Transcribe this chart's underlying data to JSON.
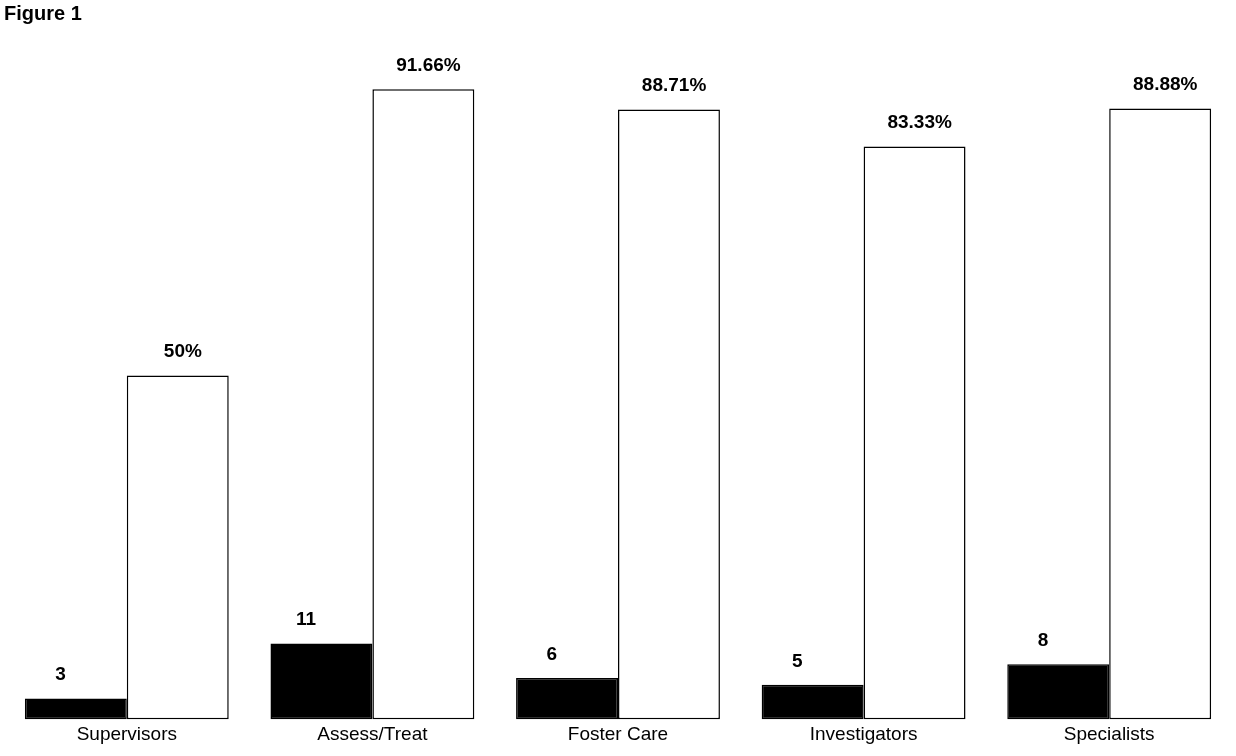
{
  "chart_data": {
    "type": "bar",
    "title": "Figure 1",
    "categories": [
      "Supervisors",
      "Assess/Treat",
      "Foster Care",
      "Investigators",
      "Specialists"
    ],
    "series": [
      {
        "color": "#000000",
        "values": [
          3,
          11,
          6,
          5,
          8
        ],
        "value_labels": [
          "3",
          "11",
          "6",
          "5",
          "8"
        ]
      },
      {
        "color": "#ffffff",
        "values": [
          50,
          91.66,
          88.71,
          83.33,
          88.88
        ],
        "value_labels": [
          "50%",
          "91.66%",
          "88.71%",
          "83.33%",
          "88.88%"
        ]
      }
    ],
    "grid": false,
    "legend": false
  }
}
